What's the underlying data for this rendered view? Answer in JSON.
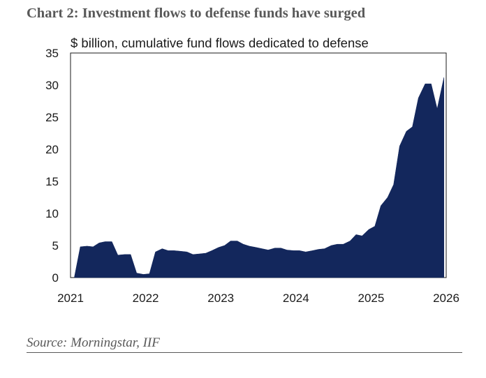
{
  "chart_data": {
    "type": "area",
    "title": "Chart 2: Investment flows to defense funds have surged",
    "subtitle": "$ billion, cumulative fund flows dedicated to defense",
    "xlabel": "",
    "ylabel": "$ billion, cumulative fund flows dedicated to defense",
    "xlim": [
      2021,
      2026
    ],
    "ylim": [
      0,
      35
    ],
    "x_ticks": [
      "2021",
      "2022",
      "2023",
      "2024",
      "2025",
      "2026"
    ],
    "y_ticks": [
      "0",
      "5",
      "10",
      "15",
      "20",
      "25",
      "30",
      "35"
    ],
    "grid": false,
    "legend": "none",
    "series": [
      {
        "name": "Cumulative fund flows dedicated to defense",
        "color": "#13275c",
        "x": [
          2021.05,
          2021.13,
          2021.22,
          2021.3,
          2021.38,
          2021.46,
          2021.55,
          2021.63,
          2021.72,
          2021.8,
          2021.88,
          2021.97,
          2022.05,
          2022.13,
          2022.22,
          2022.3,
          2022.38,
          2022.47,
          2022.55,
          2022.63,
          2022.72,
          2022.8,
          2022.88,
          2022.97,
          2023.05,
          2023.13,
          2023.22,
          2023.3,
          2023.38,
          2023.47,
          2023.55,
          2023.63,
          2023.72,
          2023.8,
          2023.88,
          2023.97,
          2024.05,
          2024.13,
          2024.22,
          2024.3,
          2024.38,
          2024.47,
          2024.55,
          2024.63,
          2024.72,
          2024.8,
          2024.88,
          2024.97,
          2025.05,
          2025.13,
          2025.22,
          2025.3,
          2025.38,
          2025.47,
          2025.55,
          2025.63,
          2025.72,
          2025.8,
          2025.88,
          2025.97
        ],
        "values": [
          0.0,
          4.8,
          4.9,
          4.8,
          5.4,
          5.6,
          5.6,
          3.5,
          3.6,
          3.6,
          0.7,
          0.5,
          0.6,
          4.0,
          4.5,
          4.2,
          4.2,
          4.1,
          4.0,
          3.6,
          3.7,
          3.8,
          4.2,
          4.7,
          5.0,
          5.7,
          5.7,
          5.2,
          4.9,
          4.7,
          4.5,
          4.3,
          4.6,
          4.6,
          4.3,
          4.2,
          4.2,
          4.0,
          4.2,
          4.4,
          4.5,
          5.0,
          5.2,
          5.2,
          5.7,
          6.7,
          6.5,
          7.5,
          8.0,
          11.2,
          12.5,
          14.5,
          20.5,
          22.8,
          23.5,
          28.0,
          30.2,
          30.2,
          26.3,
          31.2
        ]
      }
    ]
  },
  "source": {
    "text": "Source: Morningstar, IIF"
  }
}
